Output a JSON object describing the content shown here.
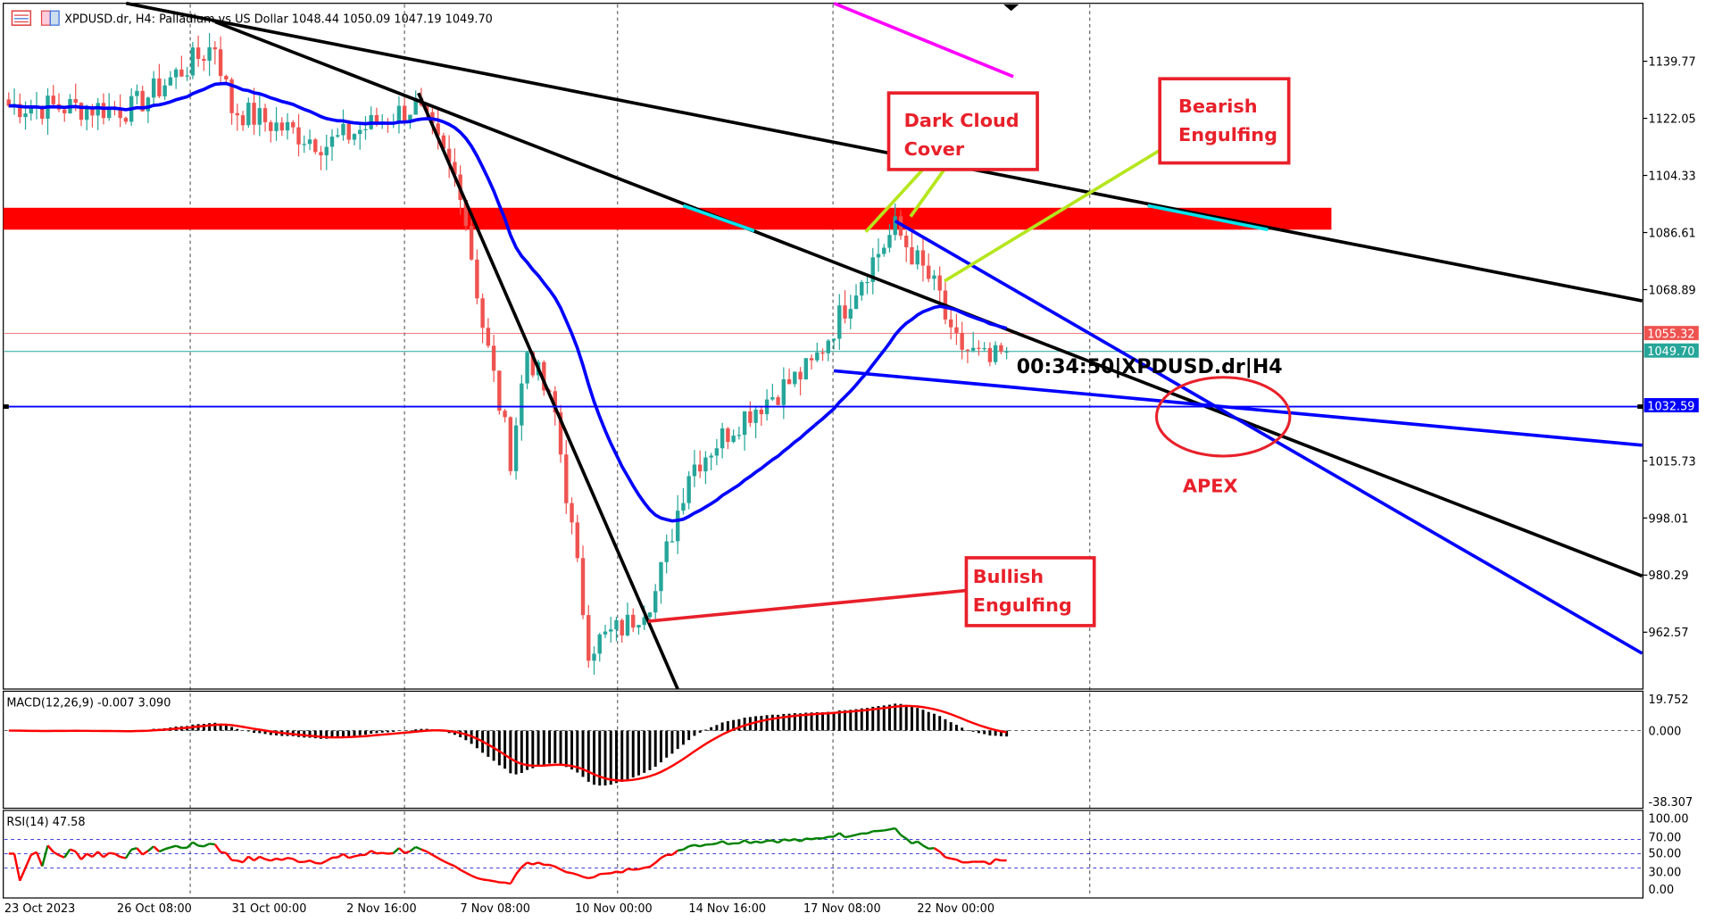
{
  "header": {
    "symbol_title": "XPDUSD.dr, H4:  Palladium vs US Dollar",
    "ohlc": "1048.44 1050.09 1047.19 1049.70"
  },
  "price_axis": {
    "ticks": [
      "1139.77",
      "1122.05",
      "1104.33",
      "1086.61",
      "1068.89",
      "1015.73",
      "998.01",
      "980.29",
      "962.57"
    ],
    "tick_values": [
      1139.77,
      1122.05,
      1104.33,
      1086.61,
      1068.89,
      1015.73,
      998.01,
      980.29,
      962.57
    ],
    "ask_label": "1055.32",
    "bid_label": "1049.70",
    "hline_label": "1032.59",
    "ask": 1055.32,
    "bid": 1049.7,
    "hline": 1032.59
  },
  "time_axis": {
    "labels": [
      "23 Oct 2023",
      "26 Oct 08:00",
      "31 Oct 00:00",
      "2 Nov 16:00",
      "7 Nov 08:00",
      "10 Nov 00:00",
      "14 Nov 16:00",
      "17 Nov 08:00",
      "22 Nov 00:00"
    ]
  },
  "colors": {
    "bull": "#26a69a",
    "bear": "#ef5350",
    "ma": "#0000ff",
    "zone": "#ff0000",
    "annotation": "#e8202a",
    "pointer": "#b5e61d",
    "trend": "#000000",
    "cyan": "#00e5ee",
    "magenta": "#ff00ff"
  },
  "price_path": [
    [
      0,
      1126
    ],
    [
      22,
      1125
    ],
    [
      37,
      1145
    ],
    [
      40,
      1125
    ],
    [
      57,
      1114
    ],
    [
      73,
      1126
    ],
    [
      81,
      1101
    ],
    [
      85,
      1058
    ],
    [
      90,
      1017
    ],
    [
      93,
      1050
    ],
    [
      98,
      1030
    ],
    [
      104,
      958
    ],
    [
      111,
      965
    ],
    [
      116,
      975
    ],
    [
      122,
      1013
    ],
    [
      132,
      1030
    ],
    [
      144,
      1045
    ],
    [
      153,
      1073
    ],
    [
      159,
      1088
    ],
    [
      167,
      1067
    ],
    [
      169,
      1053
    ],
    [
      176,
      1046
    ],
    [
      179,
      1049.7
    ]
  ],
  "drawings": {
    "resistance_zone": [
      1087.5,
      1094.3
    ],
    "black_trendlines": [
      [
        [
          18,
          1158.8
        ],
        [
          293,
          1065.4
        ]
      ],
      [
        [
          37,
          1152
        ],
        [
          293,
          980
        ]
      ],
      [
        [
          73.5,
          1129.9
        ],
        [
          120,
          944.9
        ]
      ]
    ],
    "blue_trendlines": [
      [
        [
          159,
          1090.2
        ],
        [
          293,
          956
        ]
      ],
      [
        [
          148,
          1043.7
        ],
        [
          293,
          1020.6
        ]
      ]
    ]
  },
  "annotations": {
    "dark_cloud": [
      "Dark Cloud",
      "Cover"
    ],
    "bearish": [
      "Bearish",
      "Engulfing"
    ],
    "bullish": [
      "Bullish",
      "Engulfing"
    ],
    "apex": "APEX",
    "timer": "00:34:50|XPDUSD.dr|H4"
  },
  "macd": {
    "label": "MACD(12,26,9) -0.007 3.090",
    "ticks": [
      "19.752",
      "0.000",
      "-38.307"
    ]
  },
  "rsi": {
    "label": "RSI(14) 47.58",
    "ticks": [
      "100.00",
      "70.00",
      "50.00",
      "30.00",
      "0.00"
    ]
  }
}
